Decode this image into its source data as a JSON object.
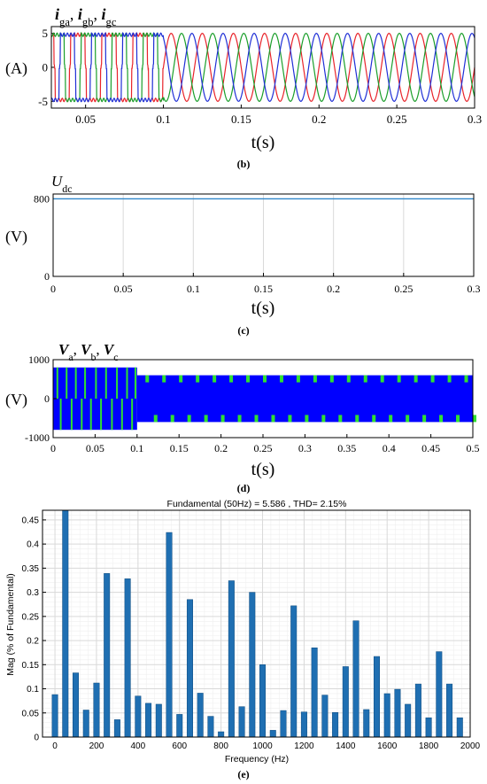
{
  "colors": {
    "phase_a": "#e8232a",
    "phase_b": "#1a9e2a",
    "phase_c": "#1f2fd6",
    "dc_line": "#2f86c9",
    "pwm_fill": "#0000ff",
    "pwm_flash": "#30e030",
    "bar": "#1f6fb2",
    "grid": "#d9d9d9"
  },
  "chart_data": [
    {
      "type": "line",
      "panel_label": "(b)",
      "title": "",
      "title_parts": [
        {
          "t": "i",
          "style": "bi"
        },
        {
          "t": "ga",
          "style": "sub"
        },
        {
          "t": ", ",
          "style": "n"
        },
        {
          "t": "i",
          "style": "bi"
        },
        {
          "t": "gb",
          "style": "sub"
        },
        {
          "t": ", ",
          "style": "n"
        },
        {
          "t": "i",
          "style": "bi"
        },
        {
          "t": "gc",
          "style": "sub"
        }
      ],
      "unit": "(A)",
      "xlabel": "t(s)",
      "ylabel": "",
      "xlim": [
        0.028,
        0.3
      ],
      "ylim": [
        -6,
        6
      ],
      "xticks": [
        0.05,
        0.1,
        0.15,
        0.2,
        0.25,
        0.3
      ],
      "xtick_labels": [
        "0.05",
        "0.1",
        "0.15",
        "0.2",
        "0.25",
        "0.3"
      ],
      "yticks": [
        -5,
        0,
        5
      ],
      "ytick_labels": [
        "-5",
        "0",
        "5"
      ],
      "frequency_hz": 50,
      "amplitude": 5,
      "transition_time": 0.1,
      "series": [
        {
          "phase_deg": 0,
          "color_key": "phase_a"
        },
        {
          "phase_deg": -120,
          "color_key": "phase_b"
        },
        {
          "phase_deg": 120,
          "color_key": "phase_c"
        }
      ]
    },
    {
      "type": "line",
      "panel_label": "(c)",
      "title": "",
      "title_parts": [
        {
          "t": "U",
          "style": "i"
        },
        {
          "t": "dc",
          "style": "sub"
        }
      ],
      "unit": "(V)",
      "xlabel": "t(s)",
      "ylabel": "",
      "xlim": [
        0,
        0.3
      ],
      "ylim": [
        0,
        850
      ],
      "xticks": [
        0,
        0.05,
        0.1,
        0.15,
        0.2,
        0.25,
        0.3
      ],
      "xtick_labels": [
        "0",
        "0.05",
        "0.1",
        "0.15",
        "0.2",
        "0.25",
        "0.3"
      ],
      "yticks": [
        0,
        800
      ],
      "ytick_labels": [
        "0",
        "800"
      ],
      "grid": true,
      "series": [
        {
          "x": [
            0,
            0.3
          ],
          "y": [
            800,
            800
          ],
          "color_key": "dc_line"
        }
      ]
    },
    {
      "type": "area",
      "panel_label": "(d)",
      "title": "",
      "title_parts": [
        {
          "t": "V",
          "style": "bi"
        },
        {
          "t": "a",
          "style": "sub"
        },
        {
          "t": ", ",
          "style": "n"
        },
        {
          "t": "V",
          "style": "bi"
        },
        {
          "t": "b",
          "style": "sub"
        },
        {
          "t": ", ",
          "style": "n"
        },
        {
          "t": "V",
          "style": "bi"
        },
        {
          "t": "c",
          "style": "sub"
        }
      ],
      "unit": "(V)",
      "xlabel": "t(s)",
      "ylabel": "",
      "xlim": [
        0,
        0.5
      ],
      "ylim": [
        -1000,
        1000
      ],
      "xticks": [
        0,
        0.05,
        0.1,
        0.15,
        0.2,
        0.25,
        0.3,
        0.35,
        0.4,
        0.45,
        0.5
      ],
      "xtick_labels": [
        "0",
        "0.05",
        "0.1",
        "0.15",
        "0.2",
        "0.25",
        "0.3",
        "0.35",
        "0.4",
        "0.45",
        "0.5"
      ],
      "yticks": [
        -1000,
        0,
        1000
      ],
      "ytick_labels": [
        "-1000",
        "0",
        "1000"
      ],
      "segments": [
        {
          "t_start": 0.0,
          "t_end": 0.1,
          "v_max": 800,
          "v_min": -800
        },
        {
          "t_start": 0.1,
          "t_end": 0.5,
          "v_max": 600,
          "v_min": -600
        }
      ],
      "green_marks_first_segment": [
        0.004,
        0.008,
        0.015,
        0.021,
        0.026,
        0.033,
        0.037,
        0.044,
        0.05,
        0.056,
        0.062,
        0.069,
        0.075,
        0.081,
        0.087,
        0.093,
        0.097
      ],
      "green_marks_period": 0.02,
      "green_marks_second_start": 0.11
    },
    {
      "type": "bar",
      "panel_label": "(e)",
      "title": "Fundamental (50Hz) = 5.586 , THD= 2.15%",
      "xlabel": "Frequency (Hz)",
      "ylabel": "Mag (% of Fundamental)",
      "xlim": [
        -60,
        2000
      ],
      "ylim": [
        0,
        0.47
      ],
      "xticks": [
        0,
        200,
        400,
        600,
        800,
        1000,
        1200,
        1400,
        1600,
        1800,
        2000
      ],
      "xtick_labels": [
        "0",
        "200",
        "400",
        "600",
        "800",
        "1000",
        "1200",
        "1400",
        "1600",
        "1800",
        "2000"
      ],
      "yticks": [
        0,
        0.05,
        0.1,
        0.15,
        0.2,
        0.25,
        0.3,
        0.35,
        0.4,
        0.45
      ],
      "ytick_labels": [
        "0",
        "0.05",
        "0.1",
        "0.15",
        "0.2",
        "0.25",
        "0.3",
        "0.35",
        "0.4",
        "0.45"
      ],
      "grid": true,
      "x": [
        0,
        50,
        100,
        150,
        200,
        250,
        300,
        350,
        400,
        450,
        500,
        550,
        600,
        650,
        700,
        750,
        800,
        850,
        900,
        950,
        1000,
        1050,
        1100,
        1150,
        1200,
        1250,
        1300,
        1350,
        1400,
        1450,
        1500,
        1550,
        1600,
        1650,
        1700,
        1750,
        1800,
        1850,
        1900,
        1950
      ],
      "values": [
        0.088,
        0.47,
        0.133,
        0.056,
        0.112,
        0.339,
        0.036,
        0.328,
        0.085,
        0.07,
        0.068,
        0.424,
        0.047,
        0.285,
        0.091,
        0.043,
        0.011,
        0.324,
        0.063,
        0.3,
        0.15,
        0.014,
        0.055,
        0.272,
        0.052,
        0.185,
        0.087,
        0.051,
        0.146,
        0.241,
        0.057,
        0.167,
        0.09,
        0.099,
        0.068,
        0.11,
        0.04,
        0.177,
        0.11,
        0.04
      ]
    }
  ]
}
